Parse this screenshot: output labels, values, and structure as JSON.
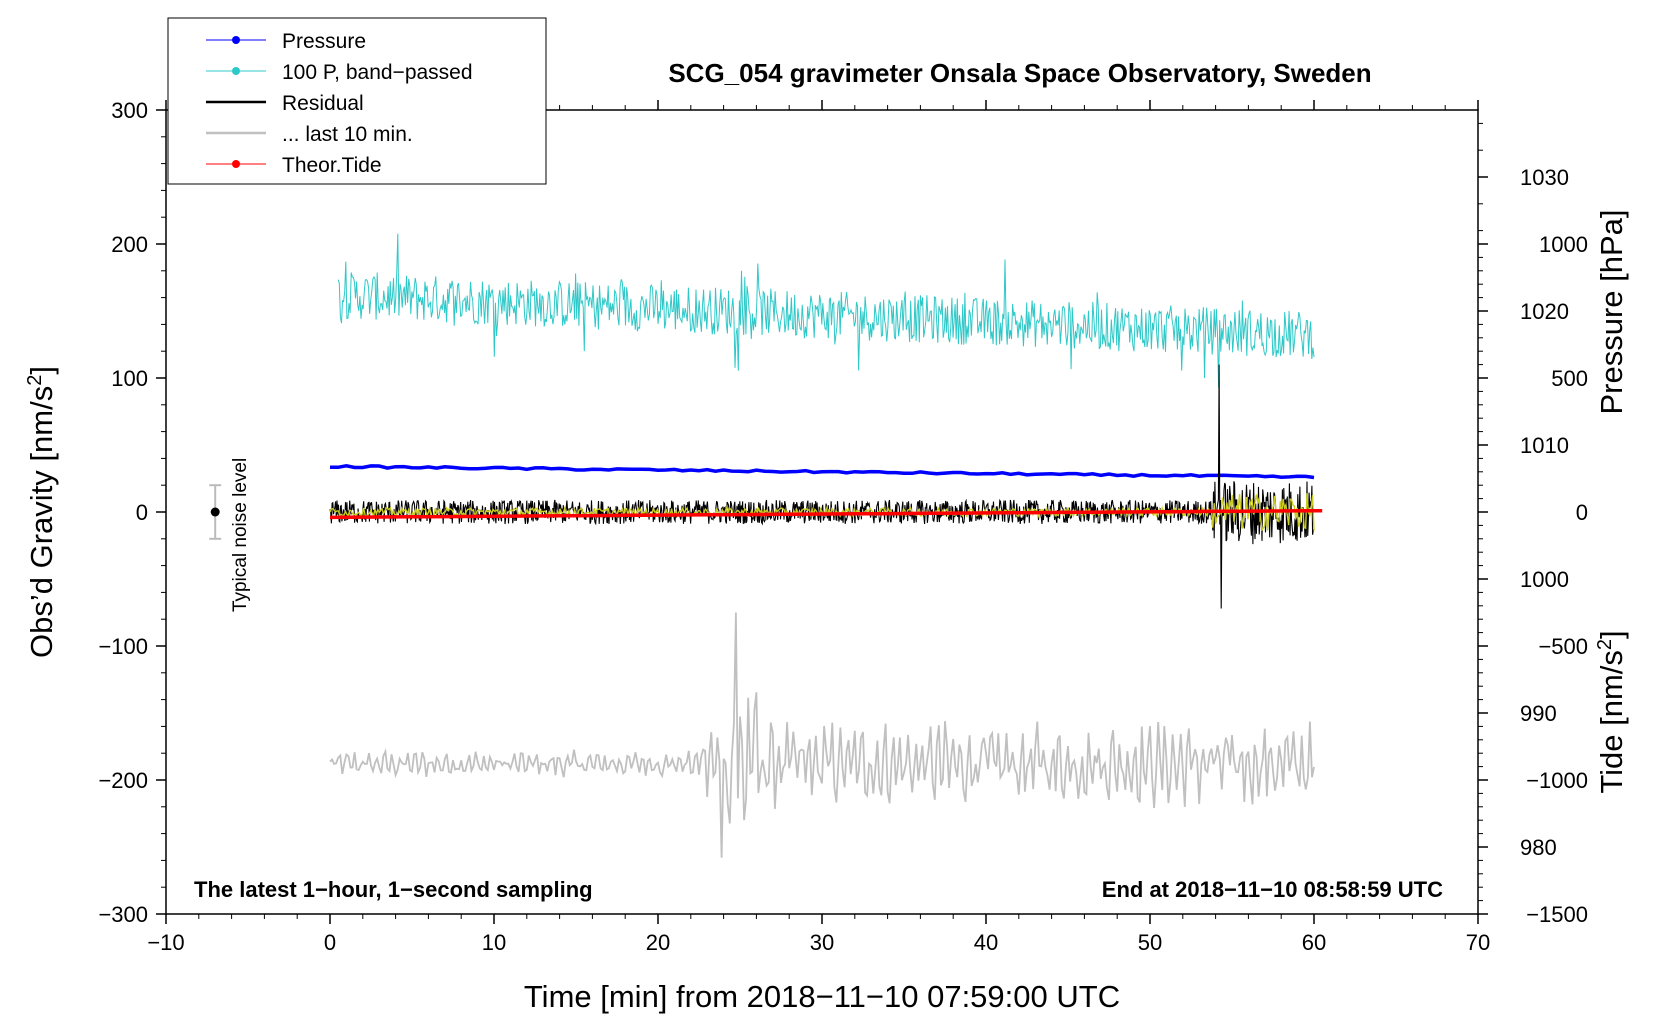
{
  "chart_data": {
    "type": "line",
    "title": "SCG_054 gravimeter Onsala Space Observatory, Sweden",
    "xlabel": "Time [min] from 2018−11−10 07:59:00 UTC",
    "ylabel_left": "Obs’d Gravity [nm/s",
    "ylabel_right_pressure": "Pressure [hPa]",
    "ylabel_right_tide": "Tide [nm/s",
    "unit_superscript": "2",
    "xlim": [
      -10,
      70
    ],
    "ylim_left": [
      -300,
      300
    ],
    "ylim_pressure": [
      975,
      1035
    ],
    "ylim_tide": [
      -1500,
      1500
    ],
    "x_ticks": [
      -10,
      0,
      10,
      20,
      30,
      40,
      50,
      60,
      70
    ],
    "x_tick_labels": [
      "−10",
      "0",
      "10",
      "20",
      "30",
      "40",
      "50",
      "60",
      "70"
    ],
    "y_left_ticks": [
      -300,
      -200,
      -100,
      0,
      100,
      200,
      300
    ],
    "y_left_tick_labels": [
      "−300",
      "−200",
      "−100",
      "0",
      "100",
      "200",
      "300"
    ],
    "pressure_ticks": [
      980,
      990,
      1000,
      1010,
      1020,
      1030
    ],
    "pressure_tick_labels": [
      "980",
      "990",
      "1000",
      "1010",
      "1020",
      "1030"
    ],
    "tide_ticks": [
      -1500,
      -1000,
      -500,
      0,
      500,
      1000
    ],
    "tide_tick_labels": [
      "−1500",
      "−1000",
      "−500",
      "0",
      "500",
      "1000"
    ],
    "annotations": {
      "left": "The latest 1−hour, 1−second sampling",
      "right": "End at 2018−11−10 08:58:59 UTC",
      "noise": "Typical noise level"
    },
    "noise_bar": {
      "x": -7,
      "center": 0,
      "half_range": 20
    },
    "legend": [
      {
        "label": "Pressure",
        "color": "#0000ff",
        "marker": true
      },
      {
        "label": "100 P, band−passed",
        "color": "#2fc8c8",
        "marker": true
      },
      {
        "label": "Residual",
        "color": "#000000",
        "marker": false
      },
      {
        "label": "... last 10 min.",
        "color": "#c0c0c0",
        "marker": false
      },
      {
        "label": "Theor.Tide",
        "color": "#ff0000",
        "marker": true
      }
    ],
    "series": [
      {
        "name": "Pressure",
        "axis": "pressure",
        "color": "#0000ff",
        "x_range": [
          0,
          60
        ],
        "start": 1008.4,
        "end": 1007.6
      },
      {
        "name": "100 P, band−passed",
        "axis": "left",
        "color": "#2fc8c8",
        "x_range": [
          0.5,
          60
        ],
        "start_level": 162,
        "end_level": 132,
        "amplitude": 18
      },
      {
        "name": "Residual",
        "axis": "left",
        "color": "#000000",
        "x_range": [
          0,
          60
        ],
        "level": 0,
        "amplitude": 9,
        "event_start_min": 53.8,
        "event_peak_max": 110,
        "event_peak_min": -72
      },
      {
        "name": "Residual (filtered)",
        "axis": "left",
        "color": "#cccc22",
        "x_range": [
          0,
          60
        ],
        "level": 0,
        "amplitude": 3
      },
      {
        "name": "... last 10 min.",
        "axis": "left",
        "color": "#c0c0c0",
        "x_range": [
          0,
          60
        ],
        "level": -188,
        "amplitude": 10,
        "event_start_min": 22.5,
        "event_peak_max": -75,
        "event_peak_min": -258
      },
      {
        "name": "Theor.Tide",
        "axis": "tide",
        "color": "#ff0000",
        "x_range": [
          0,
          60.5
        ],
        "start": -20,
        "end": 5
      }
    ]
  }
}
